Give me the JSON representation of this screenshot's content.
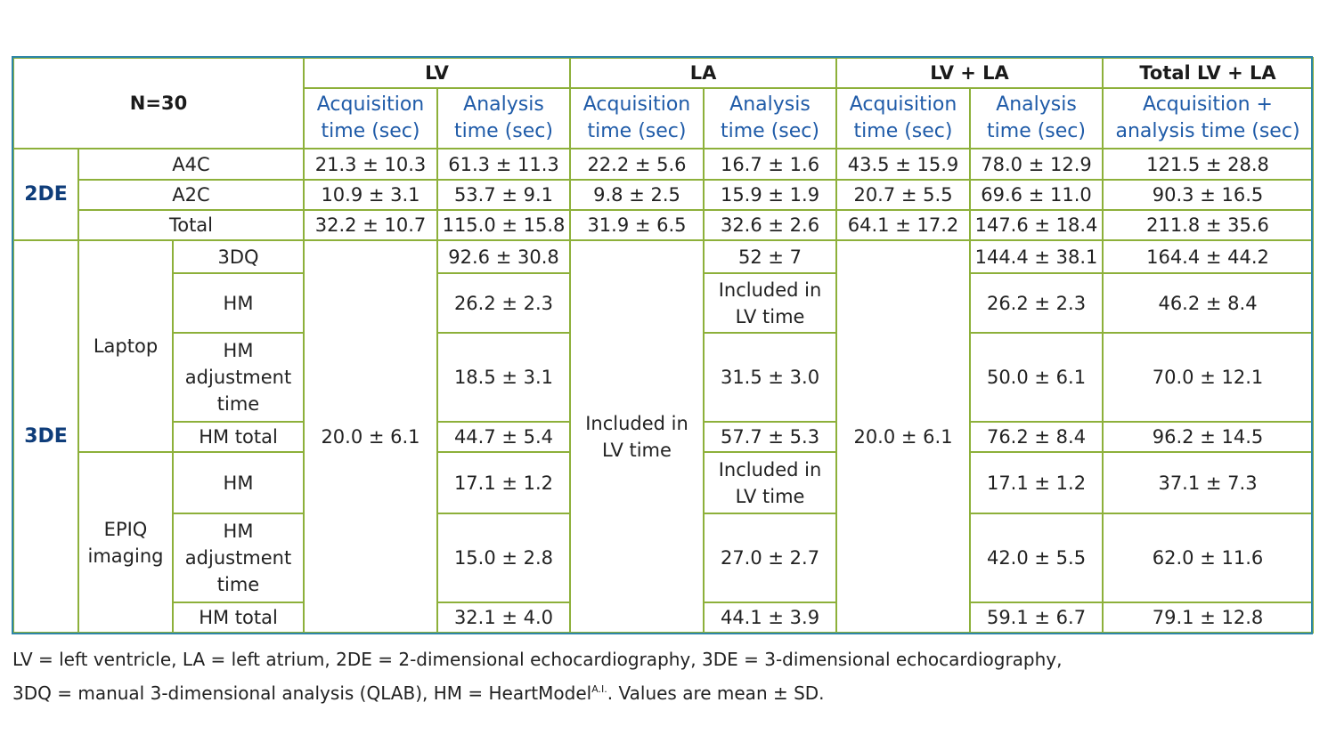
{
  "table": {
    "n_label": "N=30",
    "groups": {
      "lv": "LV",
      "la": "LA",
      "lvla": "LV + LA",
      "total": "Total LV + LA"
    },
    "subheaders": {
      "acq": [
        "Acquisition",
        "time (sec)"
      ],
      "ana": [
        "Analysis",
        "time (sec)"
      ],
      "tot": [
        "Acquisition +",
        "analysis time (sec)"
      ]
    },
    "section_2de": "2DE",
    "section_3de": "3DE",
    "rows_2de": [
      {
        "label": "A4C",
        "values": [
          "21.3 ± 10.3",
          "61.3 ± 11.3",
          "22.2 ± 5.6",
          "16.7 ± 1.6",
          "43.5 ± 15.9",
          "78.0 ± 12.9",
          "121.5 ± 28.8"
        ]
      },
      {
        "label": "A2C",
        "values": [
          "10.9 ± 3.1",
          "53.7 ± 9.1",
          "9.8 ± 2.5",
          "15.9 ± 1.9",
          "20.7 ± 5.5",
          "69.6 ± 11.0",
          "90.3 ± 16.5"
        ]
      },
      {
        "label": "Total",
        "values": [
          "32.2 ± 10.7",
          "115.0 ± 15.8",
          "31.9 ± 6.5",
          "32.6 ± 2.6",
          "64.1 ± 17.2",
          "147.6 ± 18.4",
          "211.8 ± 35.6"
        ]
      }
    ],
    "laptop_label": "Laptop",
    "epiq_label": [
      "EPIQ",
      "imaging"
    ],
    "lv_acq_3de": "20.0 ± 6.1",
    "la_acq_3de": [
      "Included in",
      "LV time"
    ],
    "lvla_acq_3de": "20.0 ± 6.1",
    "rows_3de": [
      {
        "label": [
          "3DQ"
        ],
        "lv_ana": "92.6 ± 30.8",
        "la_ana": [
          "52 ± 7"
        ],
        "lvla_ana": "144.4 ± 38.1",
        "total": "164.4 ± 44.2"
      },
      {
        "label": [
          "HM"
        ],
        "lv_ana": "26.2 ± 2.3",
        "la_ana": [
          "Included in",
          "LV time"
        ],
        "lvla_ana": "26.2 ± 2.3",
        "total": "46.2 ± 8.4"
      },
      {
        "label": [
          "HM",
          "adjustment",
          "time"
        ],
        "lv_ana": "18.5 ± 3.1",
        "la_ana": [
          "31.5 ± 3.0"
        ],
        "lvla_ana": "50.0 ± 6.1",
        "total": "70.0 ± 12.1"
      },
      {
        "label": [
          "HM total"
        ],
        "lv_ana": "44.7 ± 5.4",
        "la_ana": [
          "57.7 ± 5.3"
        ],
        "lvla_ana": "76.2 ± 8.4",
        "total": "96.2 ± 14.5"
      },
      {
        "label": [
          "HM"
        ],
        "lv_ana": "17.1 ± 1.2",
        "la_ana": [
          "Included in",
          "LV time"
        ],
        "lvla_ana": "17.1 ± 1.2",
        "total": "37.1 ± 7.3"
      },
      {
        "label": [
          "HM",
          "adjustment",
          "time"
        ],
        "lv_ana": "15.0 ± 2.8",
        "la_ana": [
          "27.0 ± 2.7"
        ],
        "lvla_ana": "42.0 ± 5.5",
        "total": "62.0 ± 11.6"
      },
      {
        "label": [
          "HM total"
        ],
        "lv_ana": "32.1 ± 4.0",
        "la_ana": [
          "44.1 ± 3.9"
        ],
        "lvla_ana": "59.1 ± 6.7",
        "total": "79.1 ± 12.8"
      }
    ]
  },
  "footnote": {
    "line1": "LV = left ventricle, LA = left atrium, 2DE = 2-dimensional echocardiography, 3DE = 3-dimensional echocardiography,",
    "line2_a": "3DQ = manual 3-dimensional analysis (QLAB), HM = HeartModel",
    "line2_sup": "A.I.",
    "line2_b": ". Values are mean ± SD."
  },
  "colors": {
    "grid": "#8db03a",
    "frame": "#2e86a8",
    "header_blue": "#1f5ba8",
    "section_blue": "#0f3d7a"
  }
}
